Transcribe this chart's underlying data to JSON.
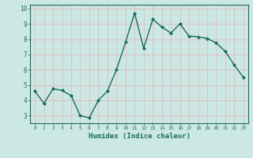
{
  "x": [
    0,
    1,
    2,
    3,
    4,
    5,
    6,
    7,
    8,
    9,
    10,
    11,
    12,
    13,
    14,
    15,
    16,
    17,
    18,
    19,
    20,
    21,
    22,
    23
  ],
  "y": [
    4.6,
    3.8,
    4.75,
    4.65,
    4.3,
    3.0,
    2.85,
    4.0,
    4.6,
    6.0,
    7.8,
    9.7,
    7.4,
    9.3,
    8.8,
    8.4,
    9.0,
    8.2,
    8.15,
    8.05,
    7.75,
    7.2,
    6.3,
    5.5
  ],
  "line_color": "#1a6b60",
  "marker": "D",
  "marker_size": 2.0,
  "xlabel": "Humidex (Indice chaleur)",
  "ylabel": "",
  "xlim": [
    -0.5,
    23.5
  ],
  "ylim": [
    2.5,
    10.25
  ],
  "yticks": [
    3,
    4,
    5,
    6,
    7,
    8,
    9,
    10
  ],
  "xticks": [
    0,
    1,
    2,
    3,
    4,
    5,
    6,
    7,
    8,
    9,
    10,
    11,
    12,
    13,
    14,
    15,
    16,
    17,
    18,
    19,
    20,
    21,
    22,
    23
  ],
  "bg_color": "#cce8e4",
  "grid_color_v": "#e8b0b0",
  "grid_color_h": "#e8b0b0",
  "tick_color": "#1a6b60",
  "label_color": "#1a6b60",
  "linewidth": 1.0
}
